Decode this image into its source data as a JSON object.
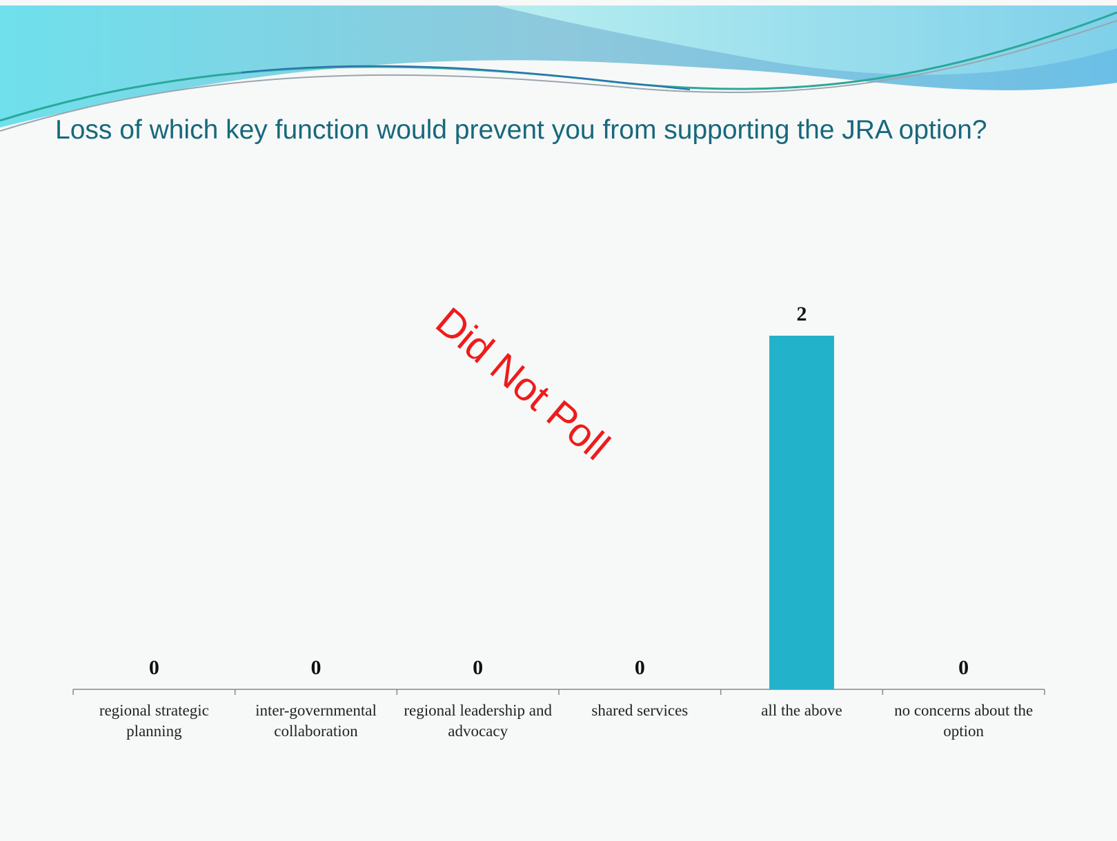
{
  "chart_data": {
    "type": "bar",
    "title": "Loss of which key function would prevent you from supporting the JRA option?",
    "annotation": "Did Not Poll",
    "categories": [
      "regional strategic planning",
      "inter-governmental collaboration",
      "regional leadership and advocacy",
      "shared services",
      "all the above",
      "no concerns about the option"
    ],
    "values": [
      0,
      0,
      0,
      0,
      2,
      0
    ],
    "color": "#22b2c9",
    "ylim": [
      0,
      2
    ]
  }
}
